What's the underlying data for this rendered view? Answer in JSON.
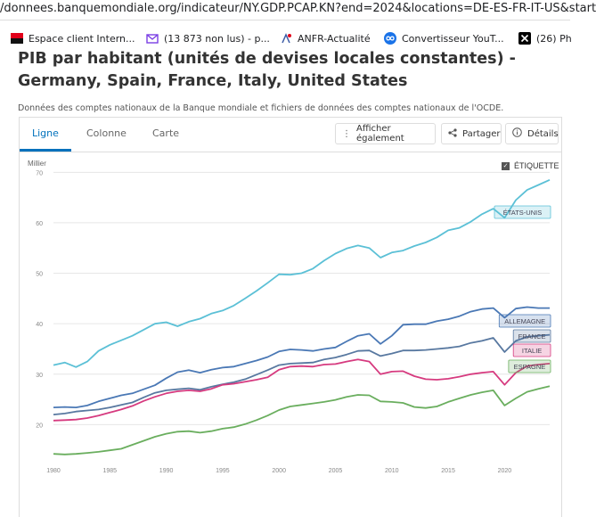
{
  "browser": {
    "url": "/donnees.banquemondiale.org/indicateur/NY.GDP.PCAP.KN?end=2024&locations=DE-ES-FR-IT-US&start",
    "bookmarks": [
      {
        "label": "Espace client Intern...",
        "icon": "sfr-flag-icon",
        "color": "#e2001a"
      },
      {
        "label": "(13 873 non lus) - p...",
        "icon": "mail-icon",
        "color": "#7b3fe4"
      },
      {
        "label": "ANFR-Actualité",
        "icon": "anfr-logo-icon",
        "color": "#3b5ba5"
      },
      {
        "label": "Convertisseur YouT...",
        "icon": "infinity-icon",
        "color": "#1a73e8"
      },
      {
        "label": "(26) Ph",
        "icon": "x-logo-icon",
        "color": "#000000"
      }
    ]
  },
  "page": {
    "title": "PIB par habitant (unités de devises locales constantes) - Germany, Spain, France, Italy, United States",
    "subtitle": "Données des comptes nationaux de la Banque mondiale et fichiers de données des comptes nationaux de l'OCDE."
  },
  "tabs": [
    {
      "label": "Ligne",
      "active": true
    },
    {
      "label": "Colonne",
      "active": false
    },
    {
      "label": "Carte",
      "active": false
    }
  ],
  "actions": {
    "show_also": "Afficher également",
    "share": "Partager",
    "details": "Détails"
  },
  "label_toggle": {
    "label": "ÉTIQUETTE",
    "checked": true
  },
  "chart_data": {
    "type": "line",
    "ylabel": "Millier",
    "ylim": [
      13,
      72
    ],
    "yticks": [
      20,
      30,
      40,
      50,
      60,
      70
    ],
    "xlim": [
      1980,
      2024
    ],
    "xticks": [
      1980,
      1985,
      1990,
      1995,
      2000,
      2005,
      2010,
      2015,
      2020
    ],
    "x": [
      1980,
      1981,
      1982,
      1983,
      1984,
      1985,
      1986,
      1987,
      1988,
      1989,
      1990,
      1991,
      1992,
      1993,
      1994,
      1995,
      1996,
      1997,
      1998,
      1999,
      2000,
      2001,
      2002,
      2003,
      2004,
      2005,
      2006,
      2007,
      2008,
      2009,
      2010,
      2011,
      2012,
      2013,
      2014,
      2015,
      2016,
      2017,
      2018,
      2019,
      2020,
      2021,
      2022,
      2023,
      2024
    ],
    "series": [
      {
        "name": "ÉTATS-UNIS",
        "color": "#5bc0d6",
        "values": [
          31.8,
          32.3,
          31.4,
          32.5,
          34.6,
          35.8,
          36.7,
          37.6,
          38.8,
          40.0,
          40.3,
          39.5,
          40.4,
          41.0,
          42.0,
          42.6,
          43.6,
          45.0,
          46.5,
          48.1,
          49.8,
          49.7,
          50.0,
          50.9,
          52.5,
          53.9,
          54.9,
          55.5,
          55.0,
          53.1,
          54.1,
          54.5,
          55.4,
          56.1,
          57.1,
          58.5,
          59.0,
          60.2,
          61.7,
          62.8,
          61.0,
          64.5,
          66.5,
          67.5,
          68.5
        ]
      },
      {
        "name": "ALLEMAGNE",
        "color": "#4a78b5",
        "values": [
          23.4,
          23.5,
          23.4,
          23.8,
          24.6,
          25.2,
          25.8,
          26.2,
          27.0,
          27.8,
          29.2,
          30.4,
          30.8,
          30.3,
          30.9,
          31.3,
          31.5,
          32.1,
          32.7,
          33.4,
          34.5,
          34.9,
          34.8,
          34.6,
          35.0,
          35.3,
          36.5,
          37.6,
          38.0,
          36.0,
          37.6,
          39.8,
          39.9,
          39.9,
          40.5,
          40.9,
          41.5,
          42.4,
          42.9,
          43.1,
          41.2,
          43.0,
          43.3,
          43.1,
          43.1
        ]
      },
      {
        "name": "FRANCE",
        "color": "#5878a0",
        "values": [
          22.0,
          22.2,
          22.6,
          22.8,
          23.0,
          23.4,
          23.9,
          24.4,
          25.4,
          26.3,
          26.8,
          27.0,
          27.2,
          26.9,
          27.5,
          28.0,
          28.4,
          29.0,
          29.9,
          30.8,
          31.8,
          32.1,
          32.2,
          32.3,
          32.9,
          33.3,
          33.9,
          34.6,
          34.7,
          33.6,
          34.1,
          34.7,
          34.7,
          34.8,
          35.0,
          35.2,
          35.5,
          36.2,
          36.6,
          37.2,
          34.4,
          36.6,
          37.4,
          37.6,
          37.8
        ]
      },
      {
        "name": "ITALIE",
        "color": "#d63a7f",
        "values": [
          20.8,
          20.9,
          21.0,
          21.3,
          21.8,
          22.4,
          23.0,
          23.7,
          24.7,
          25.5,
          26.2,
          26.6,
          26.8,
          26.6,
          27.1,
          27.9,
          28.1,
          28.5,
          28.9,
          29.4,
          30.9,
          31.5,
          31.6,
          31.5,
          31.9,
          32.0,
          32.5,
          32.9,
          32.5,
          30.0,
          30.5,
          30.6,
          29.6,
          29.0,
          28.9,
          29.1,
          29.5,
          30.0,
          30.3,
          30.5,
          27.9,
          30.3,
          31.6,
          31.9,
          32.1
        ]
      },
      {
        "name": "ESPAGNE",
        "color": "#6aae5e",
        "values": [
          14.2,
          14.1,
          14.2,
          14.4,
          14.6,
          14.9,
          15.2,
          16.0,
          16.8,
          17.6,
          18.2,
          18.6,
          18.7,
          18.4,
          18.7,
          19.2,
          19.5,
          20.1,
          20.9,
          21.8,
          22.9,
          23.6,
          23.9,
          24.2,
          24.5,
          24.9,
          25.5,
          25.9,
          25.8,
          24.6,
          24.5,
          24.3,
          23.5,
          23.3,
          23.6,
          24.5,
          25.2,
          25.9,
          26.4,
          26.8,
          23.8,
          25.2,
          26.5,
          27.1,
          27.6
        ]
      }
    ],
    "grid": true,
    "legend": "end-of-line labels"
  }
}
